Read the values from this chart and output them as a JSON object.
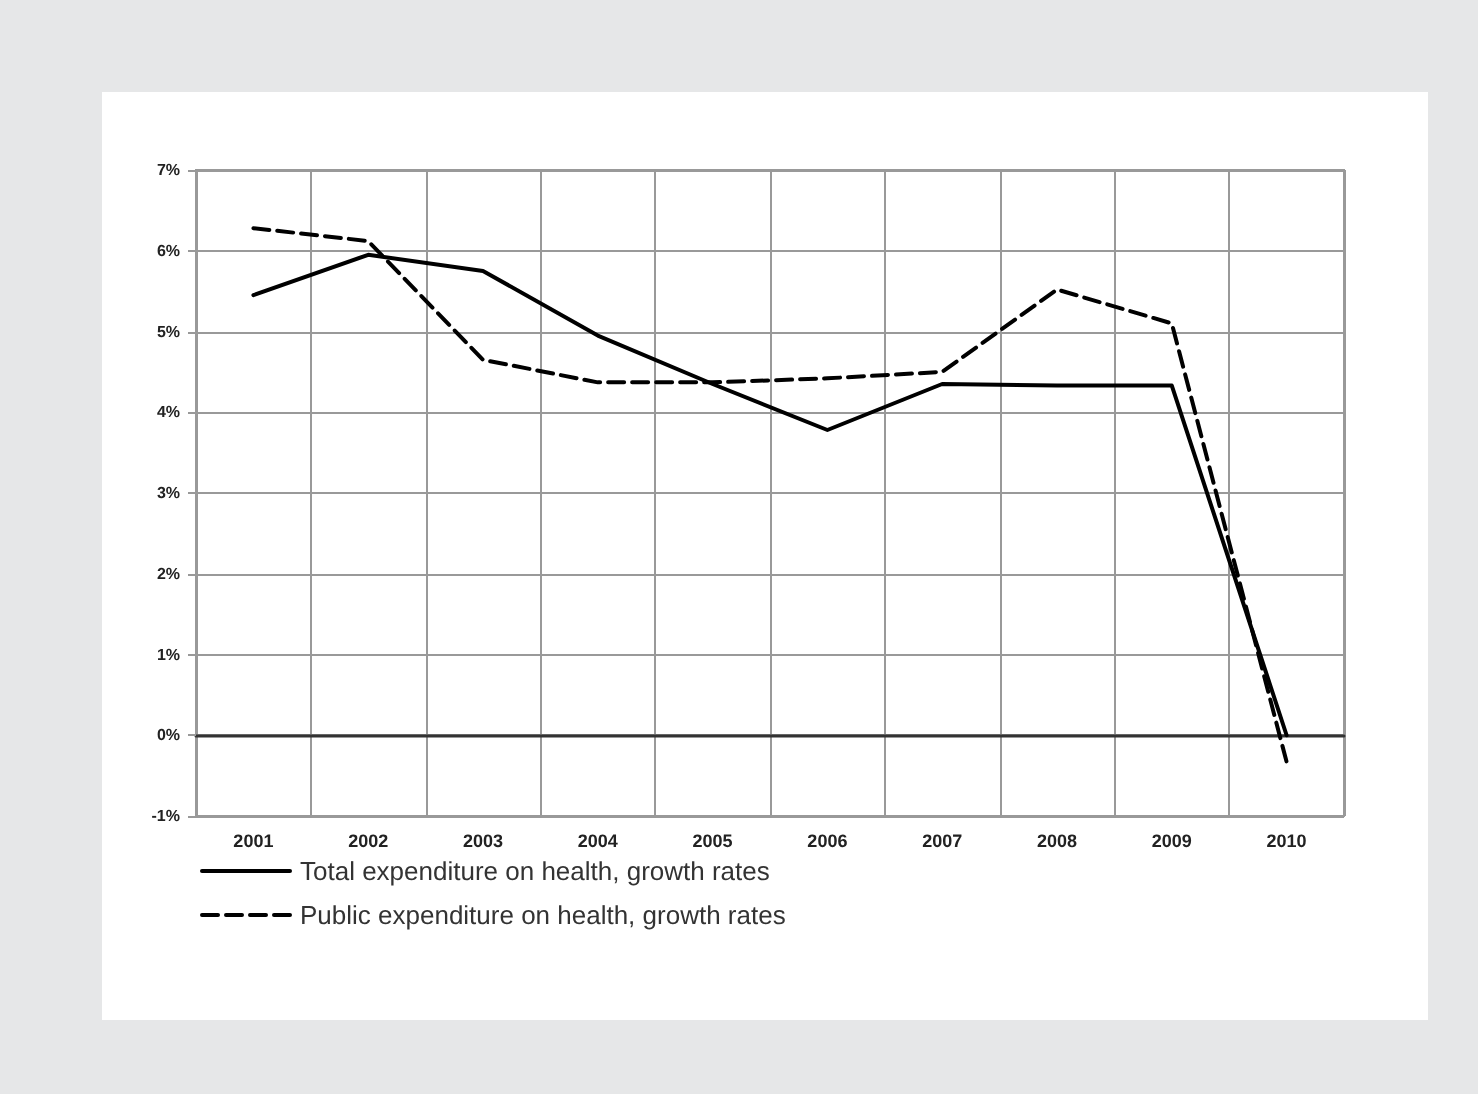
{
  "chart_data": {
    "type": "line",
    "categories": [
      "2001",
      "2002",
      "2003",
      "2004",
      "2005",
      "2006",
      "2007",
      "2008",
      "2009",
      "2010"
    ],
    "series": [
      {
        "name": "Total expenditure on health, growth rates",
        "color": "#000000",
        "line_style": "solid",
        "values": [
          5.45,
          5.95,
          5.75,
          4.95,
          4.35,
          3.78,
          4.35,
          4.33,
          4.33,
          0.0
        ]
      },
      {
        "name": "Public expenditure on health, growth rates",
        "color": "#000000",
        "line_style": "dashed",
        "values": [
          6.28,
          6.12,
          4.65,
          4.37,
          4.37,
          4.42,
          4.5,
          5.52,
          5.1,
          -0.33
        ]
      }
    ],
    "ylim": [
      -1,
      7
    ],
    "yticks": [
      {
        "value": -1,
        "label": "-1%"
      },
      {
        "value": 0,
        "label": "0%"
      },
      {
        "value": 1,
        "label": "1%"
      },
      {
        "value": 2,
        "label": "2%"
      },
      {
        "value": 3,
        "label": "3%"
      },
      {
        "value": 4,
        "label": "4%"
      },
      {
        "value": 5,
        "label": "5%"
      },
      {
        "value": 6,
        "label": "6%"
      },
      {
        "value": 7,
        "label": "7%"
      }
    ],
    "grid": true,
    "legend": "bottom left",
    "marker": "none"
  }
}
